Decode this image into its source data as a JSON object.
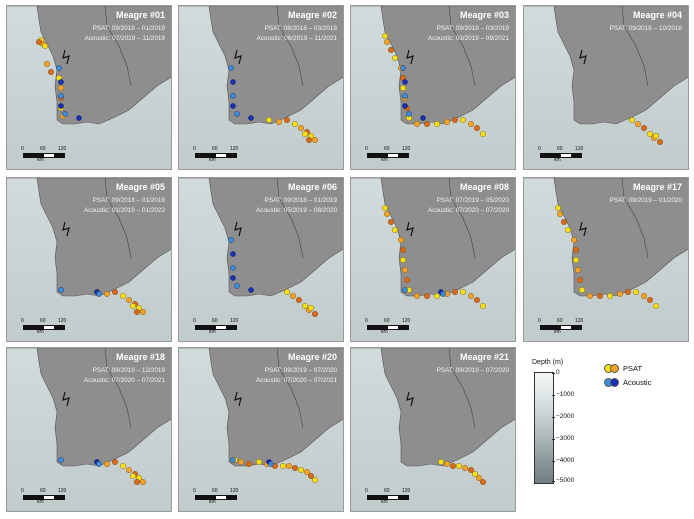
{
  "panels": [
    {
      "title": "Meagre #01",
      "psat": "PSAT: 09/2018 – 01/2019",
      "acoustic": "Acoustic: 07/2019 – 11/2019",
      "track": "west",
      "acoustic_pts": "west"
    },
    {
      "title": "Meagre #02",
      "psat": "PSAT: 08/2018 – 03/2019",
      "acoustic": "Acoustic: 06/2019 – 11/2021",
      "track": "east",
      "acoustic_pts": "west"
    },
    {
      "title": "Meagre #03",
      "psat": "PSAT: 09/2018 – 03/2019",
      "acoustic": "Acoustic: 03/2019 – 09/2021",
      "track": "full",
      "acoustic_pts": "west"
    },
    {
      "title": "Meagre #04",
      "psat": "PSAT: 09/2018 – 10/2018",
      "acoustic": "",
      "track": "east-small",
      "acoustic_pts": "none"
    },
    {
      "title": "Meagre #05",
      "psat": "PSAT: 09/2018 – 01/2019",
      "acoustic": "Acoustic: 01/2019 – 01/2022",
      "track": "east",
      "acoustic_pts": "south"
    },
    {
      "title": "Meagre #06",
      "psat": "PSAT: 09/2018 – 01/2019",
      "acoustic": "Acoustic: 05/2019 – 08/2020",
      "track": "east-small",
      "acoustic_pts": "west"
    },
    {
      "title": "Meagre #08",
      "psat": "PSAT: 07/2019 – 05/2020",
      "acoustic": "Acoustic: 07/2020 – 07/2020",
      "track": "full",
      "acoustic_pts": "south"
    },
    {
      "title": "Meagre #17",
      "psat": "PSAT: 09/2019 – 01/2020",
      "acoustic": "",
      "track": "full",
      "acoustic_pts": "none"
    },
    {
      "title": "Meagre #18",
      "psat": "PSAT: 09/2019 – 12/2019",
      "acoustic": "Acoustic: 07/2020 – 07/2021",
      "track": "east",
      "acoustic_pts": "south"
    },
    {
      "title": "Meagre #20",
      "psat": "PSAT: 09/2019 – 07/2020",
      "acoustic": "Acoustic: 07/2020 – 07/2021",
      "track": "south",
      "acoustic_pts": "south"
    },
    {
      "title": "Meagre #21",
      "psat": "PSAT: 09/2019 – 07/2020",
      "acoustic": "",
      "track": "east-orange",
      "acoustic_pts": "none"
    }
  ],
  "scalebar": {
    "t0": "0",
    "t1": "60",
    "t2": "120",
    "unit": "km"
  },
  "legend": {
    "depth_title": "Depth (m)",
    "depth_ticks": [
      "0",
      "−1000",
      "−2000",
      "−3000",
      "−4000",
      "−5000"
    ],
    "psat_label": "PSAT",
    "acoustic_label": "Acoustic",
    "psat_colors": [
      "#f6e01c",
      "#f2a42a",
      "#d86a1e"
    ],
    "acoustic_colors": [
      "#3c8fd6",
      "#1a2fb0"
    ],
    "land_color": "#8e8e8e"
  }
}
